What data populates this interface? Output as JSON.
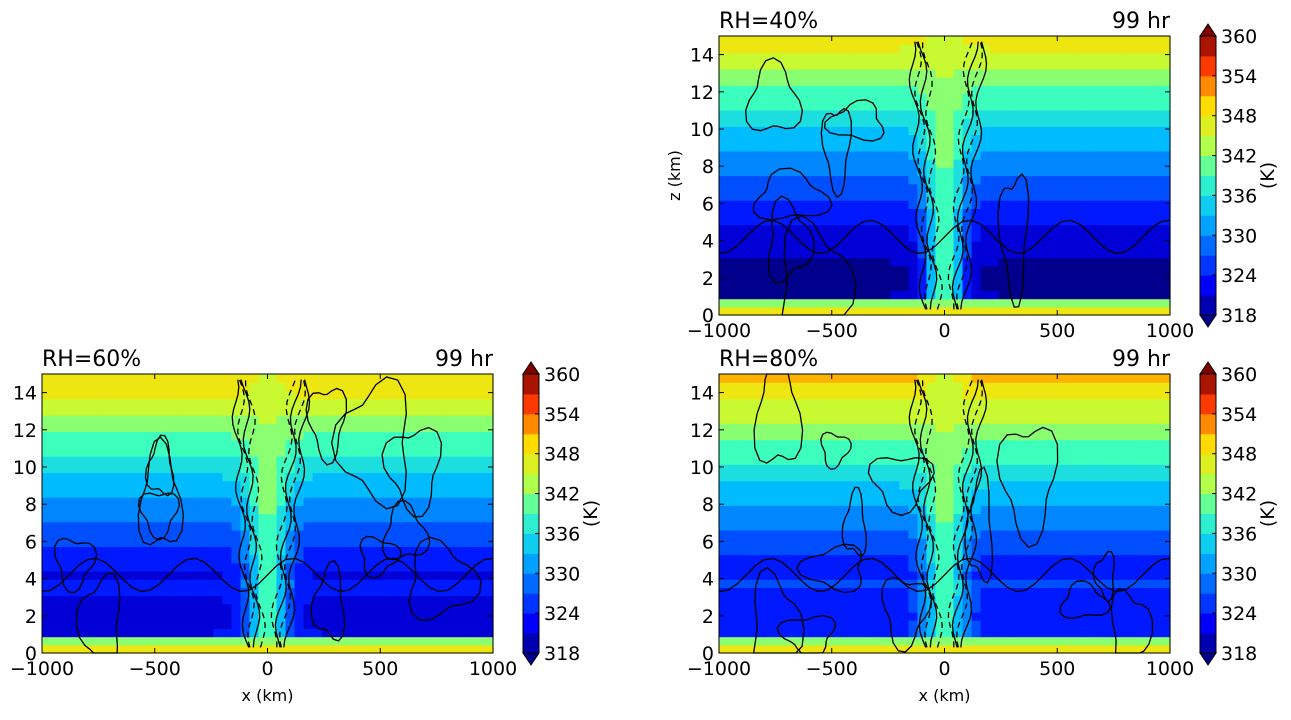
{
  "chart_data": [
    {
      "type": "heatmap",
      "title_left": "RH=40%",
      "title_right": "99 hr",
      "xlabel": "",
      "ylabel": "z (km)",
      "xlim": [
        -1000,
        1000
      ],
      "ylim": [
        0,
        15
      ],
      "xticks": [
        "−1000",
        "−500",
        "0",
        "500",
        "1000"
      ],
      "yticks": [
        "0",
        "2",
        "4",
        "6",
        "8",
        "10",
        "12",
        "14"
      ],
      "colorbar": {
        "label": "(K)",
        "ticks": [
          "318",
          "324",
          "330",
          "336",
          "342",
          "348",
          "354",
          "360"
        ],
        "range": [
          318,
          360
        ]
      }
    },
    {
      "type": "heatmap",
      "title_left": "RH=60%",
      "title_right": "99 hr",
      "xlabel": "x (km)",
      "ylabel": "",
      "xlim": [
        -1000,
        1000
      ],
      "ylim": [
        0,
        15
      ],
      "xticks": [
        "−1000",
        "−500",
        "0",
        "500",
        "1000"
      ],
      "yticks": [
        "0",
        "2",
        "4",
        "6",
        "8",
        "10",
        "12",
        "14"
      ],
      "colorbar": {
        "label": "(K)",
        "ticks": [
          "318",
          "324",
          "330",
          "336",
          "342",
          "348",
          "354",
          "360"
        ],
        "range": [
          318,
          360
        ]
      }
    },
    {
      "type": "heatmap",
      "title_left": "RH=80%",
      "title_right": "99 hr",
      "xlabel": "x (km)",
      "ylabel": "",
      "xlim": [
        -1000,
        1000
      ],
      "ylim": [
        0,
        15
      ],
      "xticks": [
        "−1000",
        "−500",
        "0",
        "500",
        "1000"
      ],
      "yticks": [
        "0",
        "2",
        "4",
        "6",
        "8",
        "10",
        "12",
        "14"
      ],
      "colorbar": {
        "label": "(K)",
        "ticks": [
          "318",
          "324",
          "330",
          "336",
          "342",
          "348",
          "354",
          "360"
        ],
        "range": [
          318,
          360
        ]
      }
    }
  ]
}
